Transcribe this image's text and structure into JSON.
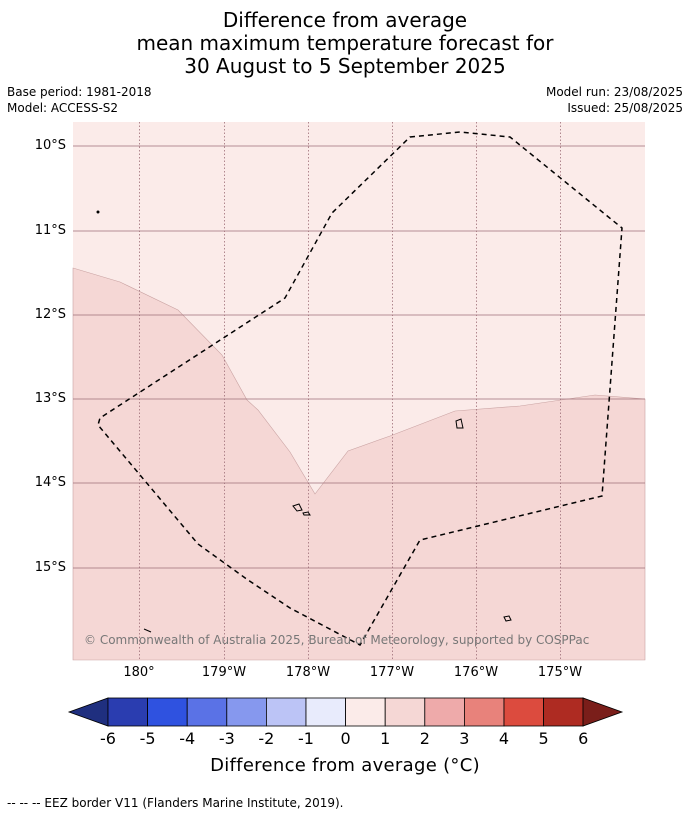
{
  "title": {
    "line1": "Difference from average",
    "line2": "mean maximum temperature forecast for",
    "line3": "30 August to 5 September 2025"
  },
  "meta": {
    "base_period": "Base period: 1981-2018",
    "model": "Model: ACCESS-S2",
    "model_run": "Model run: 23/08/2025",
    "issued": "Issued: 25/08/2025"
  },
  "map": {
    "lat_labels": [
      "10°S",
      "11°S",
      "12°S",
      "13°S",
      "14°S",
      "15°S"
    ],
    "lon_labels": [
      "180°",
      "179°W",
      "178°W",
      "177°W",
      "176°W",
      "175°W"
    ],
    "copyright": "© Commonwealth of Australia 2025, Bureau of Meteorology, supported by COSPPac",
    "colors": {
      "class_0_1": "#fbebe9",
      "class_1_2": "#f5d7d5",
      "eez_border": "#000000"
    }
  },
  "colorbar": {
    "labels": [
      "-6",
      "-5",
      "-4",
      "-3",
      "-2",
      "-1",
      "0",
      "1",
      "2",
      "3",
      "4",
      "5",
      "6"
    ],
    "colors": [
      "#1f2f7f",
      "#2a3db0",
      "#2f52e0",
      "#5a72e6",
      "#8698ee",
      "#bcc4f6",
      "#e8ebfc",
      "#fbebe9",
      "#f5d7d5",
      "#eeaaaa",
      "#e8827b",
      "#dc4b3e",
      "#ae2b22",
      "#7a1e1a"
    ],
    "title": "Difference from average (°C)"
  },
  "footer": "-- -- -- EEZ border V11 (Flanders Marine Institute, 2019)."
}
